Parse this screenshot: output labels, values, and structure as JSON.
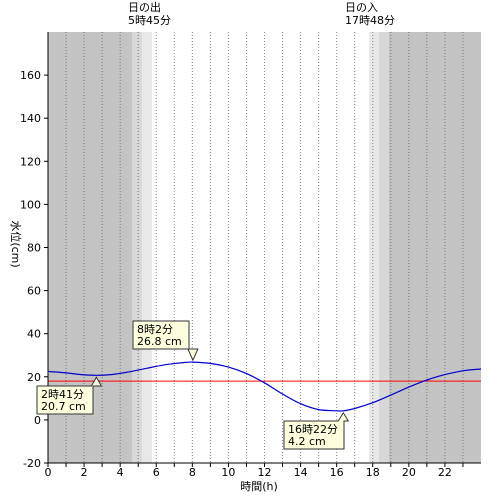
{
  "chart_data": {
    "type": "line",
    "ylabel": "水位(cm)",
    "xlabel": "時間(h)",
    "xlim": [
      0,
      24
    ],
    "ylim": [
      -20,
      180
    ],
    "x_ticks": [
      0,
      2,
      4,
      6,
      8,
      10,
      12,
      14,
      16,
      18,
      20,
      22
    ],
    "y_ticks": [
      -20,
      0,
      20,
      40,
      60,
      80,
      100,
      120,
      140,
      160
    ],
    "grid": "vertical dotted every hour",
    "sunrise": {
      "label": "日の出",
      "time_text": "5時45分",
      "hour": 5.75
    },
    "sunset": {
      "label": "日の入",
      "time_text": "17時48分",
      "hour": 17.8
    },
    "reference_line": {
      "value": 18,
      "color": "#ff0000"
    },
    "series": [
      {
        "color": "#0000cc",
        "x": [
          0,
          1,
          2,
          2.68,
          3.5,
          4.5,
          5.5,
          6.5,
          7.5,
          8.03,
          9,
          10,
          11,
          12,
          13,
          14,
          15,
          16,
          16.37,
          17,
          18,
          19,
          20,
          21,
          22,
          23,
          24
        ],
        "y": [
          22.5,
          21.8,
          20.9,
          20.7,
          21.0,
          22.3,
          24.0,
          25.6,
          26.6,
          26.8,
          26.2,
          24.5,
          21.5,
          17.2,
          12.0,
          7.5,
          4.8,
          4.2,
          4.2,
          5.3,
          8.0,
          11.5,
          15.2,
          18.5,
          21.0,
          22.8,
          23.6
        ]
      }
    ],
    "annotations": [
      {
        "time_text": "2時41分",
        "value_text": "20.7 cm",
        "hour": 2.68,
        "value": 20.7
      },
      {
        "time_text": "8時2分",
        "value_text": "26.8 cm",
        "hour": 8.03,
        "value": 26.8
      },
      {
        "time_text": "16時22分",
        "value_text": "4.2 cm",
        "hour": 16.37,
        "value": 4.2
      }
    ]
  }
}
